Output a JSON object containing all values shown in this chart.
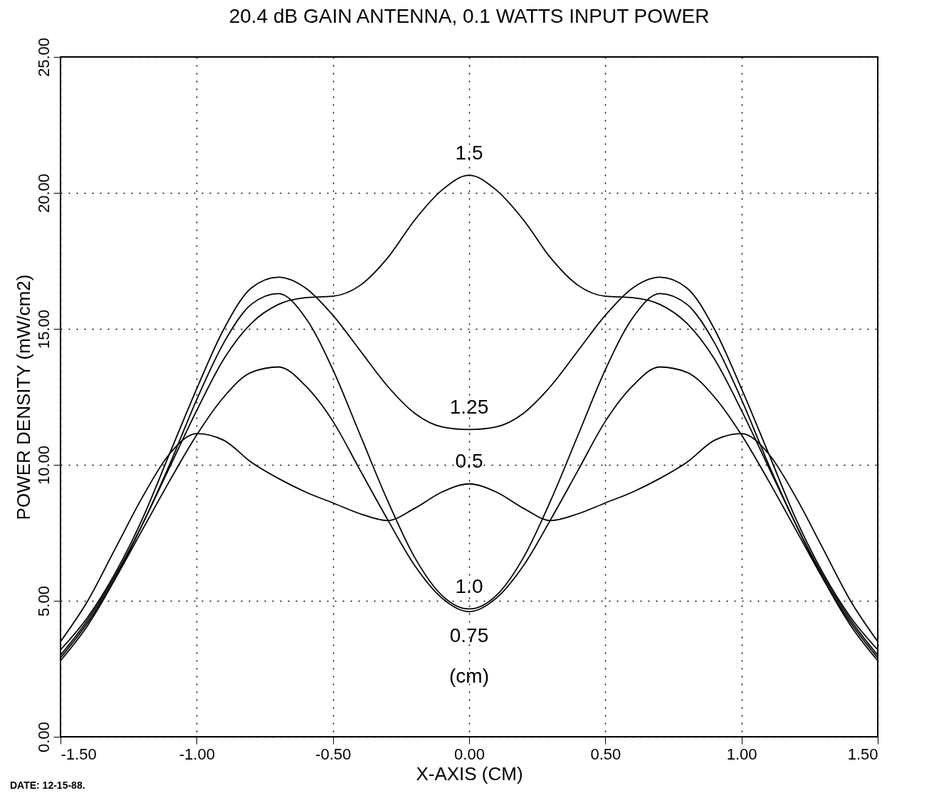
{
  "chart_data": {
    "type": "line",
    "title": "20.4 dB GAIN ANTENNA,   0.1 WATTS INPUT POWER",
    "xlabel": "X-AXIS  (CM)",
    "ylabel": "POWER DENSITY  (mW/cm2)",
    "x": [
      -1.5,
      -1.4,
      -1.3,
      -1.2,
      -1.1,
      -1.0,
      -0.9,
      -0.8,
      -0.7,
      -0.6,
      -0.5,
      -0.4,
      -0.3,
      -0.2,
      -0.1,
      0,
      0.1,
      0.2,
      0.3,
      0.4,
      0.5,
      0.6,
      0.7,
      0.8,
      0.9,
      1.0,
      1.1,
      1.2,
      1.3,
      1.4,
      1.5
    ],
    "series": [
      {
        "name": "1.5",
        "color": "#000000",
        "values": [
          3.0,
          4.3,
          5.9,
          7.8,
          9.9,
          12.0,
          13.9,
          15.2,
          15.9,
          16.15,
          16.2,
          16.6,
          17.6,
          19.0,
          20.1,
          20.65,
          20.1,
          19.0,
          17.6,
          16.6,
          16.2,
          16.15,
          15.9,
          15.2,
          13.9,
          12.0,
          9.9,
          7.8,
          5.9,
          4.3,
          3.0
        ]
      },
      {
        "name": "1.25",
        "color": "#000000",
        "values": [
          3.2,
          4.4,
          6.0,
          8.0,
          10.4,
          12.8,
          15.0,
          16.5,
          16.9,
          16.5,
          15.5,
          14.2,
          12.9,
          11.9,
          11.4,
          11.3,
          11.4,
          11.9,
          12.9,
          14.2,
          15.5,
          16.5,
          16.9,
          16.5,
          15.0,
          12.8,
          10.4,
          8.0,
          6.0,
          4.4,
          3.2
        ]
      },
      {
        "name": "1.0",
        "color": "#000000",
        "values": [
          2.8,
          4.1,
          5.8,
          7.8,
          10.0,
          12.4,
          14.5,
          15.9,
          16.3,
          15.4,
          13.5,
          11.1,
          8.7,
          6.6,
          5.2,
          4.7,
          5.2,
          6.6,
          8.7,
          11.1,
          13.5,
          15.4,
          16.3,
          15.9,
          14.5,
          12.4,
          10.0,
          7.8,
          5.8,
          4.1,
          2.8
        ]
      },
      {
        "name": "0.75",
        "color": "#000000",
        "values": [
          2.9,
          4.2,
          5.8,
          7.6,
          9.4,
          11.1,
          12.5,
          13.4,
          13.6,
          12.9,
          11.6,
          9.8,
          8.0,
          6.3,
          5.1,
          4.6,
          5.1,
          6.3,
          8.0,
          9.8,
          11.6,
          12.9,
          13.6,
          13.4,
          12.5,
          11.1,
          9.4,
          7.6,
          5.8,
          4.2,
          2.9
        ]
      },
      {
        "name": "0.5",
        "color": "#000000",
        "values": [
          3.5,
          5.0,
          6.9,
          8.8,
          10.4,
          11.15,
          10.9,
          10.1,
          9.5,
          9.0,
          8.6,
          8.2,
          7.95,
          8.4,
          9.0,
          9.3,
          9.0,
          8.4,
          7.95,
          8.2,
          8.6,
          9.0,
          9.5,
          10.1,
          10.9,
          11.15,
          10.4,
          8.8,
          6.9,
          5.0,
          3.5
        ]
      }
    ],
    "xlim": [
      -1.5,
      1.5
    ],
    "xticks": [
      {
        "value": -1.5,
        "label": "-1.50"
      },
      {
        "value": -1.0,
        "label": "-1.00"
      },
      {
        "value": -0.5,
        "label": "-0.50"
      },
      {
        "value": 0,
        "label": "0.00"
      },
      {
        "value": 0.5,
        "label": "0.50"
      },
      {
        "value": 1.0,
        "label": "1.00"
      },
      {
        "value": 1.5,
        "label": "1.50"
      }
    ],
    "ylim": [
      0,
      25
    ],
    "yticks": [
      {
        "value": 0,
        "label": "0.00"
      },
      {
        "value": 5,
        "label": "5.00"
      },
      {
        "value": 10,
        "label": "10.00"
      },
      {
        "value": 15,
        "label": "15.00"
      },
      {
        "value": 20,
        "label": "20.00"
      },
      {
        "value": 25,
        "label": "25.00"
      }
    ],
    "grid": true,
    "line_style": "solid",
    "marker": "none",
    "annotations": [
      "(cm)",
      "DATE: 12-15-88."
    ]
  }
}
